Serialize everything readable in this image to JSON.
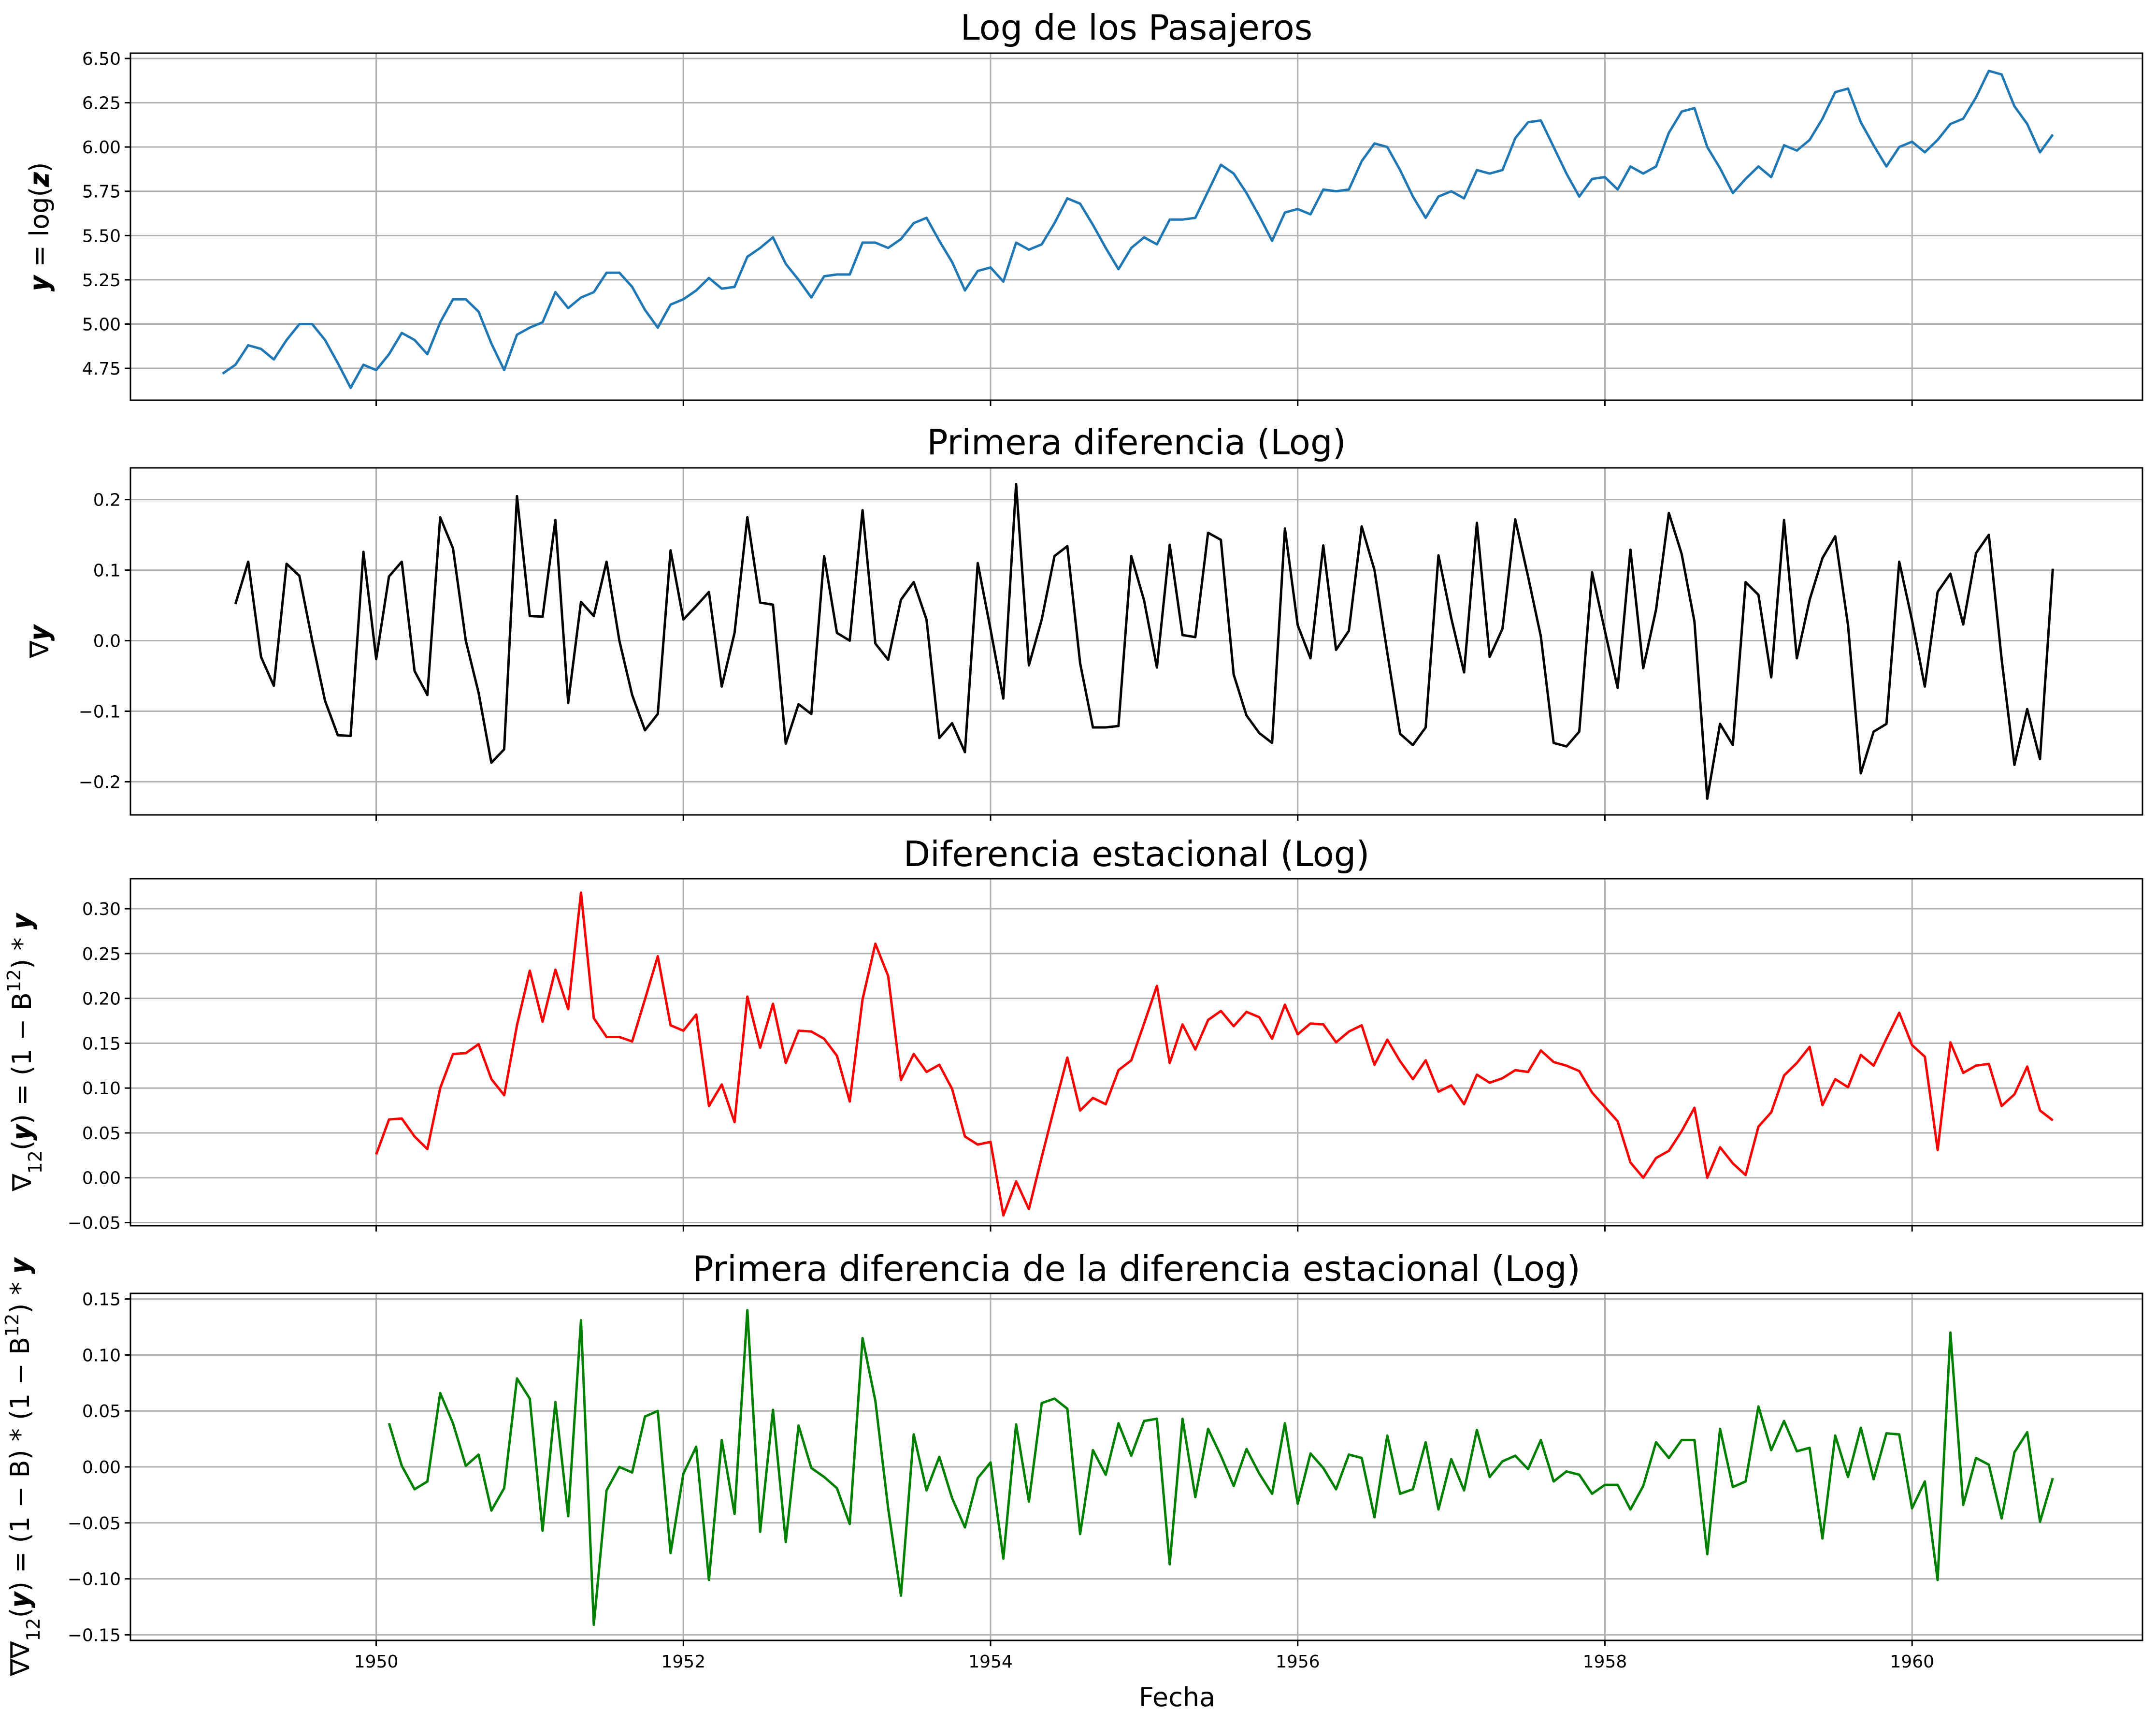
{
  "figure": {
    "xlabel": "Fecha"
  },
  "chart_data": [
    {
      "type": "line",
      "title": "Log de los Pasajeros",
      "ylabel_parts": [
        "𝒚",
        " = log(",
        "𝒛",
        ")"
      ],
      "color": "#1f77b4",
      "xlim": [
        1948.4,
        1961.5
      ],
      "ylim": [
        4.57,
        6.53
      ],
      "yticks": [
        4.75,
        5.0,
        5.25,
        5.5,
        5.75,
        6.0,
        6.25,
        6.5
      ],
      "ytick_labels": [
        "4.75",
        "5.00",
        "5.25",
        "5.50",
        "5.75",
        "6.00",
        "6.25",
        "6.50"
      ],
      "xticks": [
        1950,
        1952,
        1954,
        1956,
        1958,
        1960
      ],
      "xtick_labels": [
        "",
        "",
        "",
        "",
        "",
        ""
      ],
      "x_start": 1949.0,
      "x_step": 0.08333,
      "values": [
        4.72,
        4.77,
        4.88,
        4.86,
        4.8,
        4.91,
        5.0,
        5.0,
        4.91,
        4.78,
        4.64,
        4.77,
        4.74,
        4.83,
        4.95,
        4.91,
        4.83,
        5.01,
        5.14,
        5.14,
        5.07,
        4.89,
        4.74,
        4.94,
        4.98,
        5.01,
        5.18,
        5.09,
        5.15,
        5.18,
        5.29,
        5.29,
        5.21,
        5.08,
        4.98,
        5.11,
        5.14,
        5.19,
        5.26,
        5.2,
        5.21,
        5.38,
        5.43,
        5.49,
        5.34,
        5.25,
        5.15,
        5.27,
        5.28,
        5.28,
        5.46,
        5.46,
        5.43,
        5.48,
        5.57,
        5.6,
        5.47,
        5.35,
        5.19,
        5.3,
        5.32,
        5.24,
        5.46,
        5.42,
        5.45,
        5.57,
        5.71,
        5.68,
        5.56,
        5.43,
        5.31,
        5.43,
        5.49,
        5.45,
        5.59,
        5.59,
        5.6,
        5.75,
        5.9,
        5.85,
        5.74,
        5.61,
        5.47,
        5.63,
        5.65,
        5.62,
        5.76,
        5.75,
        5.76,
        5.92,
        6.02,
        6.0,
        5.87,
        5.72,
        5.6,
        5.72,
        5.75,
        5.71,
        5.87,
        5.85,
        5.87,
        6.05,
        6.14,
        6.15,
        6.0,
        5.85,
        5.72,
        5.82,
        5.83,
        5.76,
        5.89,
        5.85,
        5.89,
        6.08,
        6.2,
        6.22,
        6.0,
        5.88,
        5.74,
        5.82,
        5.89,
        5.83,
        6.01,
        5.98,
        6.04,
        6.16,
        6.31,
        6.33,
        6.14,
        6.01,
        5.89,
        6.0,
        6.03,
        5.97,
        6.04,
        6.13,
        6.16,
        6.28,
        6.43,
        6.41,
        6.23,
        6.13,
        5.97,
        6.07
      ]
    },
    {
      "type": "line",
      "title": "Primera diferencia (Log)",
      "ylabel_parts": [
        "∇",
        "𝒚"
      ],
      "color": "#000000",
      "xlim": [
        1948.4,
        1961.5
      ],
      "ylim": [
        -0.247,
        0.245
      ],
      "yticks": [
        -0.2,
        -0.1,
        0.0,
        0.1,
        0.2
      ],
      "ytick_labels": [
        "−0.2",
        "−0.1",
        "0.0",
        "0.1",
        "0.2"
      ],
      "xticks": [
        1950,
        1952,
        1954,
        1956,
        1958,
        1960
      ],
      "xtick_labels": [
        "",
        "",
        "",
        "",
        "",
        ""
      ],
      "x_start": 1949.0833,
      "x_step": 0.08333,
      "values": [
        0.052,
        0.112,
        -0.023,
        -0.064,
        0.109,
        0.092,
        0.0,
        -0.085,
        -0.134,
        -0.135,
        0.126,
        -0.026,
        0.091,
        0.112,
        -0.043,
        -0.077,
        0.175,
        0.131,
        0.0,
        -0.074,
        -0.173,
        -0.154,
        0.205,
        0.035,
        0.034,
        0.171,
        -0.088,
        0.055,
        0.035,
        0.112,
        0.0,
        -0.077,
        -0.127,
        -0.104,
        0.128,
        0.03,
        0.049,
        0.069,
        -0.065,
        0.011,
        0.175,
        0.054,
        0.051,
        -0.146,
        -0.09,
        -0.104,
        0.12,
        0.011,
        0.0,
        0.185,
        -0.004,
        -0.027,
        0.058,
        0.083,
        0.03,
        -0.138,
        -0.117,
        -0.158,
        0.11,
        0.016,
        -0.082,
        0.222,
        -0.035,
        0.03,
        0.12,
        0.134,
        -0.032,
        -0.123,
        -0.123,
        -0.121,
        0.12,
        0.057,
        -0.038,
        0.136,
        0.008,
        0.005,
        0.153,
        0.143,
        -0.048,
        -0.106,
        -0.131,
        -0.145,
        0.159,
        0.022,
        -0.025,
        0.135,
        -0.013,
        0.014,
        0.162,
        0.1,
        -0.017,
        -0.132,
        -0.148,
        -0.123,
        0.121,
        0.032,
        -0.045,
        0.167,
        -0.023,
        0.017,
        0.172,
        0.091,
        0.006,
        -0.145,
        -0.15,
        -0.129,
        0.097,
        0.014,
        -0.067,
        0.129,
        -0.039,
        0.044,
        0.181,
        0.123,
        0.027,
        -0.224,
        -0.118,
        -0.148,
        0.083,
        0.065,
        -0.052,
        0.171,
        -0.025,
        0.058,
        0.117,
        0.148,
        0.022,
        -0.188,
        -0.129,
        -0.118,
        0.112,
        0.029,
        -0.065,
        0.069,
        0.095,
        0.023,
        0.124,
        0.15,
        -0.026,
        -0.176,
        -0.097,
        -0.168,
        0.102
      ]
    },
    {
      "type": "line",
      "title": "Diferencia estacional (Log)",
      "ylabel_parts": [
        "∇",
        "12",
        "(",
        "𝒚",
        ") = (1 − B",
        "12",
        ") * ",
        "𝒚"
      ],
      "color": "#ff0000",
      "xlim": [
        1948.4,
        1961.5
      ],
      "ylim": [
        -0.0535,
        0.3335
      ],
      "yticks": [
        -0.05,
        0.0,
        0.05,
        0.1,
        0.15,
        0.2,
        0.25,
        0.3
      ],
      "ytick_labels": [
        "−0.05",
        "0.00",
        "0.05",
        "0.10",
        "0.15",
        "0.20",
        "0.25",
        "0.30"
      ],
      "xticks": [
        1950,
        1952,
        1954,
        1956,
        1958,
        1960
      ],
      "xtick_labels": [
        "",
        "",
        "",
        "",
        "",
        ""
      ],
      "x_start": 1950.0,
      "x_step": 0.08333,
      "values": [
        0.026,
        0.065,
        0.066,
        0.046,
        0.032,
        0.1,
        0.138,
        0.139,
        0.149,
        0.11,
        0.092,
        0.17,
        0.231,
        0.174,
        0.232,
        0.188,
        0.318,
        0.178,
        0.157,
        0.157,
        0.152,
        0.199,
        0.247,
        0.17,
        0.164,
        0.182,
        0.08,
        0.104,
        0.062,
        0.202,
        0.145,
        0.194,
        0.128,
        0.164,
        0.163,
        0.155,
        0.136,
        0.085,
        0.199,
        0.261,
        0.225,
        0.109,
        0.138,
        0.118,
        0.126,
        0.099,
        0.046,
        0.037,
        0.04,
        -0.042,
        -0.004,
        -0.035,
        0.023,
        0.079,
        0.134,
        0.075,
        0.089,
        0.082,
        0.12,
        0.131,
        0.172,
        0.214,
        0.128,
        0.171,
        0.143,
        0.176,
        0.186,
        0.169,
        0.185,
        0.179,
        0.155,
        0.193,
        0.16,
        0.172,
        0.171,
        0.151,
        0.163,
        0.17,
        0.126,
        0.154,
        0.13,
        0.11,
        0.131,
        0.096,
        0.103,
        0.082,
        0.115,
        0.106,
        0.111,
        0.12,
        0.118,
        0.142,
        0.129,
        0.125,
        0.119,
        0.095,
        0.079,
        0.063,
        0.017,
        0.0,
        0.022,
        0.03,
        0.052,
        0.078,
        0.0,
        0.034,
        0.016,
        0.003,
        0.057,
        0.073,
        0.114,
        0.128,
        0.146,
        0.081,
        0.11,
        0.101,
        0.137,
        0.125,
        0.155,
        0.184,
        0.148,
        0.135,
        0.031,
        0.151,
        0.117,
        0.125,
        0.127,
        0.08,
        0.093,
        0.124,
        0.075,
        0.064
      ]
    },
    {
      "type": "line",
      "title": "Primera diferencia de la diferencia estacional (Log)",
      "ylabel_parts": [
        "∇∇",
        "12",
        "(",
        "𝒚",
        ") = (1 − B) * (1 − B",
        "12",
        ") * ",
        "𝒚"
      ],
      "color": "#008000",
      "xlim": [
        1948.4,
        1961.5
      ],
      "ylim": [
        -0.155,
        0.155
      ],
      "yticks": [
        -0.15,
        -0.1,
        -0.05,
        0.0,
        0.05,
        0.1,
        0.15
      ],
      "ytick_labels": [
        "−0.15",
        "−0.10",
        "−0.05",
        "0.00",
        "0.05",
        "0.10",
        "0.15"
      ],
      "xticks": [
        1950,
        1952,
        1954,
        1956,
        1958,
        1960
      ],
      "xtick_labels": [
        "1950",
        "1952",
        "1954",
        "1956",
        "1958",
        "1960"
      ],
      "x_start": 1950.0833,
      "x_step": 0.08333,
      "values": [
        0.039,
        0.001,
        -0.02,
        -0.013,
        0.066,
        0.039,
        0.001,
        0.011,
        -0.039,
        -0.019,
        0.079,
        0.061,
        -0.057,
        0.058,
        -0.044,
        0.131,
        -0.141,
        -0.021,
        0.0,
        -0.005,
        0.045,
        0.05,
        -0.077,
        -0.006,
        0.018,
        -0.101,
        0.024,
        -0.042,
        0.14,
        -0.058,
        0.051,
        -0.067,
        0.037,
        -0.001,
        -0.009,
        -0.019,
        -0.051,
        0.115,
        0.059,
        -0.037,
        -0.115,
        0.029,
        -0.021,
        0.009,
        -0.028,
        -0.054,
        -0.01,
        0.004,
        -0.082,
        0.038,
        -0.031,
        0.057,
        0.061,
        0.052,
        -0.06,
        0.015,
        -0.007,
        0.039,
        0.01,
        0.041,
        0.043,
        -0.087,
        0.043,
        -0.027,
        0.034,
        0.01,
        -0.017,
        0.016,
        -0.006,
        -0.024,
        0.039,
        -0.033,
        0.012,
        -0.001,
        -0.02,
        0.011,
        0.008,
        -0.045,
        0.028,
        -0.024,
        -0.02,
        0.022,
        -0.038,
        0.007,
        -0.021,
        0.033,
        -0.009,
        0.005,
        0.01,
        -0.002,
        0.024,
        -0.013,
        -0.004,
        -0.007,
        -0.024,
        -0.016,
        -0.016,
        -0.038,
        -0.017,
        0.022,
        0.008,
        0.024,
        0.024,
        -0.078,
        0.034,
        -0.018,
        -0.013,
        0.054,
        0.015,
        0.041,
        0.014,
        0.017,
        -0.064,
        0.028,
        -0.009,
        0.035,
        -0.011,
        0.03,
        0.029,
        -0.037,
        -0.013,
        -0.101,
        0.12,
        -0.034,
        0.008,
        0.002,
        -0.046,
        0.013,
        0.031,
        -0.049,
        -0.01
      ]
    }
  ]
}
